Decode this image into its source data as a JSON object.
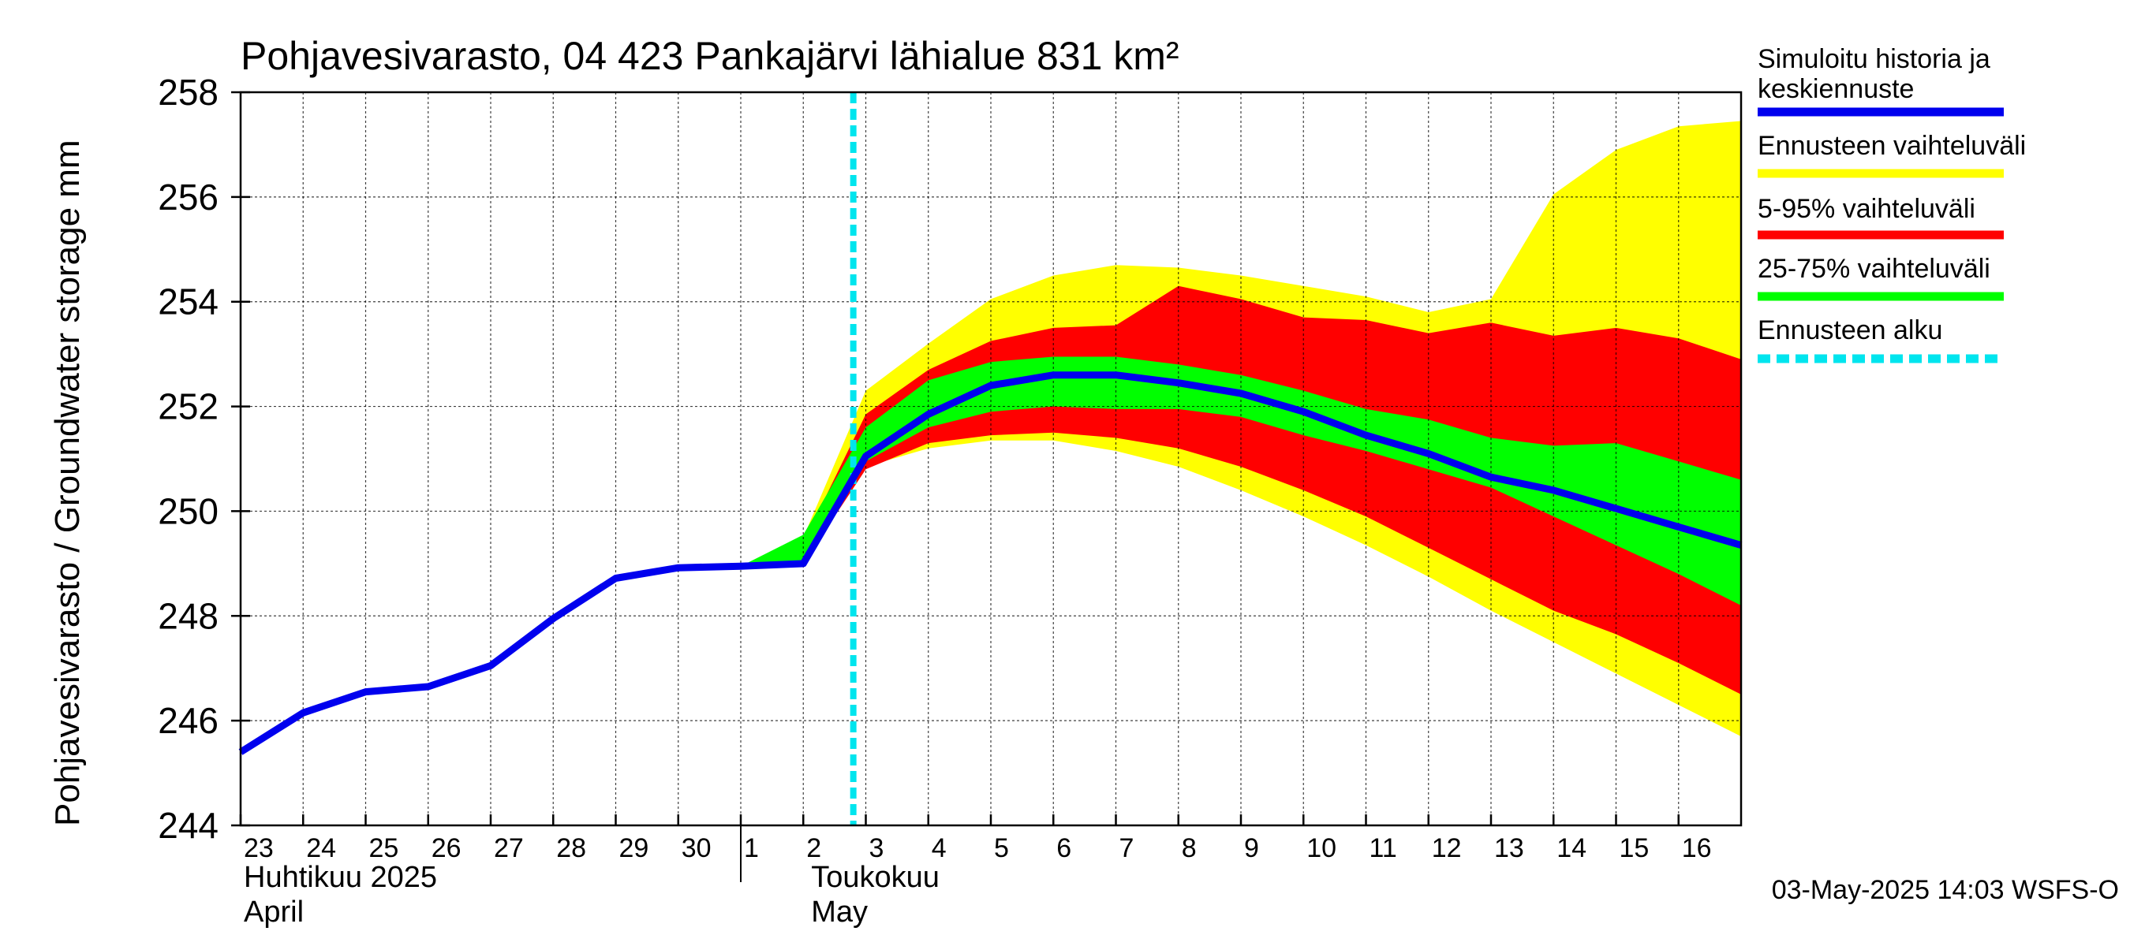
{
  "chart_data": {
    "type": "area",
    "title": "Pohjavesivarasto, 04 423 Pankajärvi lähialue 831 km²",
    "ylabel": "Pohjavesivarasto / Groundwater storage   mm",
    "ylim": [
      244,
      258
    ],
    "yticks": [
      244,
      246,
      248,
      250,
      252,
      254,
      256,
      258
    ],
    "xlim": [
      "2025-04-23",
      "2025-05-17"
    ],
    "x_tick_labels": [
      "23",
      "24",
      "25",
      "26",
      "27",
      "28",
      "29",
      "30",
      "1",
      "2",
      "3",
      "4",
      "5",
      "6",
      "7",
      "8",
      "9",
      "10",
      "11",
      "12",
      "13",
      "14",
      "15",
      "16"
    ],
    "month_labels": [
      {
        "fi": "Huhtikuu  2025",
        "en": "April"
      },
      {
        "fi": "Toukokuu",
        "en": "May"
      }
    ],
    "grid": true,
    "legend_position": "right",
    "forecast_start": "2025-05-03",
    "footer": "03-May-2025 14:03 WSFS-O",
    "colors": {
      "history": "#0000ee",
      "range_full": "#ffff00",
      "range_5_95": "#ff0000",
      "range_25_75": "#00ff00",
      "forecast_start": "#00e5ee"
    },
    "legend": [
      {
        "label": "Simuloitu historia ja keskiennuste",
        "color": "#0000ee",
        "style": "solid"
      },
      {
        "label": "Ennusteen vaihteluväli",
        "color": "#ffff00",
        "style": "solid"
      },
      {
        "label": "5-95% vaihteluväli",
        "color": "#ff0000",
        "style": "solid"
      },
      {
        "label": "25-75% vaihteluväli",
        "color": "#00ff00",
        "style": "solid"
      },
      {
        "label": "Ennusteen alku",
        "color": "#00e5ee",
        "style": "dashed"
      }
    ],
    "series": [
      {
        "name": "Simuloitu historia ja keskiennuste",
        "x": [
          "2025-04-23",
          "2025-04-24",
          "2025-04-25",
          "2025-04-26",
          "2025-04-27",
          "2025-04-28",
          "2025-04-29",
          "2025-04-30",
          "2025-05-01",
          "2025-05-02",
          "2025-05-03",
          "2025-05-04",
          "2025-05-05",
          "2025-05-06",
          "2025-05-07",
          "2025-05-08",
          "2025-05-09",
          "2025-05-10",
          "2025-05-11",
          "2025-05-12",
          "2025-05-13",
          "2025-05-14",
          "2025-05-15",
          "2025-05-16",
          "2025-05-17"
        ],
        "values": [
          245.4,
          246.15,
          246.55,
          246.65,
          247.05,
          247.95,
          248.72,
          248.92,
          248.95,
          249.0,
          251.05,
          251.85,
          252.4,
          252.6,
          252.6,
          252.45,
          252.25,
          251.9,
          251.45,
          251.1,
          250.65,
          250.4,
          250.05,
          249.7,
          249.35
        ]
      },
      {
        "name": "Ennusteen vaihteluväli",
        "x": [
          "2025-05-01",
          "2025-05-02",
          "2025-05-03",
          "2025-05-04",
          "2025-05-05",
          "2025-05-06",
          "2025-05-07",
          "2025-05-08",
          "2025-05-09",
          "2025-05-10",
          "2025-05-11",
          "2025-05-12",
          "2025-05-13",
          "2025-05-14",
          "2025-05-15",
          "2025-05-16",
          "2025-05-17"
        ],
        "upper": [
          248.95,
          249.5,
          252.3,
          253.2,
          254.05,
          254.5,
          254.7,
          254.65,
          254.5,
          254.3,
          254.1,
          253.8,
          254.05,
          256.05,
          256.9,
          257.35,
          257.45
        ],
        "lower": [
          248.95,
          249.0,
          250.85,
          251.2,
          251.35,
          251.35,
          251.15,
          250.85,
          250.4,
          249.9,
          249.35,
          248.75,
          248.1,
          247.5,
          246.9,
          246.3,
          245.7
        ]
      },
      {
        "name": "5-95% vaihteluväli",
        "x": [
          "2025-05-01",
          "2025-05-02",
          "2025-05-03",
          "2025-05-04",
          "2025-05-05",
          "2025-05-06",
          "2025-05-07",
          "2025-05-08",
          "2025-05-09",
          "2025-05-10",
          "2025-05-11",
          "2025-05-12",
          "2025-05-13",
          "2025-05-14",
          "2025-05-15",
          "2025-05-16",
          "2025-05-17"
        ],
        "upper": [
          248.95,
          249.4,
          251.85,
          252.7,
          253.25,
          253.5,
          253.55,
          254.3,
          254.05,
          253.7,
          253.65,
          253.4,
          253.6,
          253.35,
          253.5,
          253.3,
          252.9
        ],
        "lower": [
          248.95,
          249.0,
          250.8,
          251.3,
          251.45,
          251.5,
          251.4,
          251.2,
          250.85,
          250.4,
          249.9,
          249.3,
          248.7,
          248.1,
          247.65,
          247.1,
          246.5
        ]
      },
      {
        "name": "25-75% vaihteluväli",
        "x": [
          "2025-05-01",
          "2025-05-02",
          "2025-05-03",
          "2025-05-04",
          "2025-05-05",
          "2025-05-06",
          "2025-05-07",
          "2025-05-08",
          "2025-05-09",
          "2025-05-10",
          "2025-05-11",
          "2025-05-12",
          "2025-05-13",
          "2025-05-14",
          "2025-05-15",
          "2025-05-16",
          "2025-05-17"
        ],
        "upper": [
          248.95,
          249.55,
          251.6,
          252.5,
          252.85,
          252.95,
          252.95,
          252.8,
          252.6,
          252.3,
          251.95,
          251.75,
          251.4,
          251.25,
          251.3,
          250.95,
          250.6
        ],
        "lower": [
          248.95,
          249.0,
          250.95,
          251.6,
          251.9,
          252.0,
          251.95,
          251.95,
          251.8,
          251.45,
          251.15,
          250.8,
          250.45,
          249.9,
          249.35,
          248.8,
          248.2
        ]
      }
    ]
  }
}
